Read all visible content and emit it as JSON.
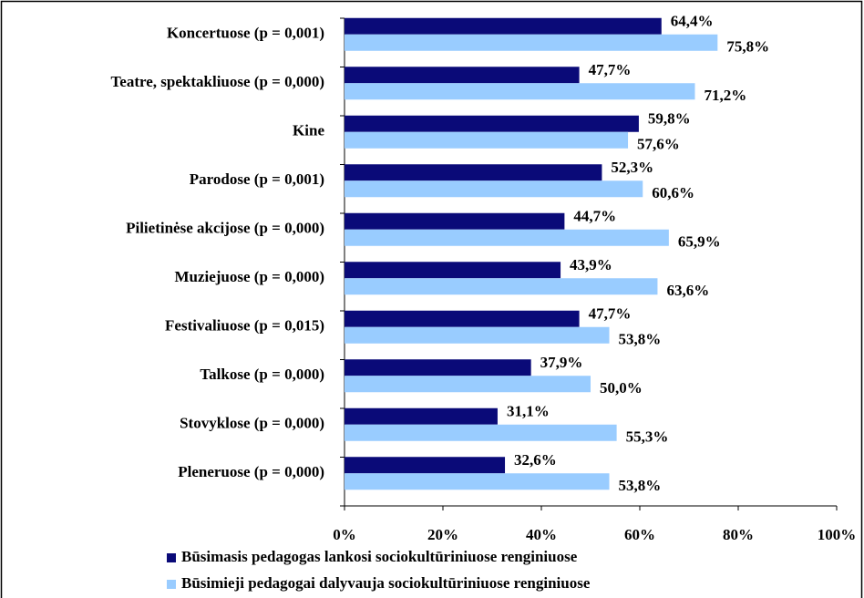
{
  "chart_data": {
    "type": "bar",
    "orientation": "horizontal",
    "categories": [
      "Koncertuose (p = 0,001)",
      "Teatre, spektakliuose (p = 0,000)",
      "Kine",
      "Parodose (p = 0,001)",
      "Pilietinėse akcijose (p = 0,000)",
      "Muziejuose (p = 0,000)",
      "Festivaliuose (p = 0,015)",
      "Talkose (p = 0,000)",
      "Stovyklose (p = 0,000)",
      "Pleneruose (p = 0,000)"
    ],
    "series": [
      {
        "name": "Būsimasis pedagogas lankosi sociokultūriniuose renginiuose",
        "color": "#0a0a78",
        "values": [
          64.4,
          47.7,
          59.8,
          52.3,
          44.7,
          43.9,
          47.7,
          37.9,
          31.1,
          32.6
        ],
        "value_labels": [
          "64,4%",
          "47,7%",
          "59,8%",
          "52,3%",
          "44,7%",
          "43,9%",
          "47,7%",
          "37,9%",
          "31,1%",
          "32,6%"
        ]
      },
      {
        "name": "Būsimieji pedagogai dalyvauja sociokultūriniuose renginiuose",
        "color": "#99ccff",
        "values": [
          75.8,
          71.2,
          57.6,
          60.6,
          65.9,
          63.6,
          53.8,
          50.0,
          55.3,
          53.8
        ],
        "value_labels": [
          "75,8%",
          "71,2%",
          "57,6%",
          "60,6%",
          "65,9%",
          "63,6%",
          "53,8%",
          "50,0%",
          "55,3%",
          "53,8%"
        ]
      }
    ],
    "xlim": [
      0,
      100
    ],
    "xticks": [
      {
        "value": 0,
        "label": "0%"
      },
      {
        "value": 20,
        "label": "20%"
      },
      {
        "value": 40,
        "label": "40%"
      },
      {
        "value": 60,
        "label": "60%"
      },
      {
        "value": 80,
        "label": "80%"
      },
      {
        "value": 100,
        "label": "100%"
      }
    ]
  }
}
